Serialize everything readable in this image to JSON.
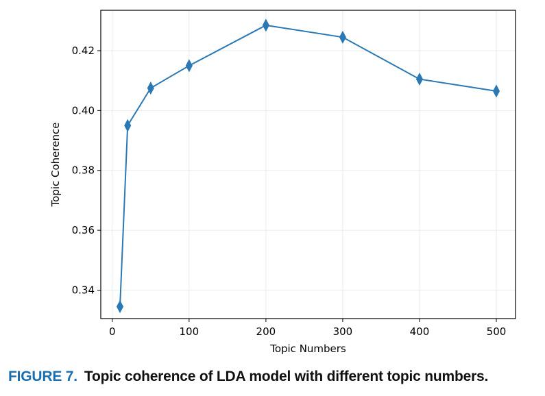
{
  "caption": {
    "label": "FIGURE 7.",
    "text": "Topic coherence of LDA model with different topic numbers."
  },
  "colors": {
    "line": "#2a78b4",
    "marker": "#2a78b4",
    "grid": "#e6e6e6",
    "frame": "#000000"
  },
  "chart_data": {
    "type": "line",
    "xlabel": "Topic Numbers",
    "ylabel": "Topic Coherence",
    "x": [
      10,
      20,
      50,
      100,
      200,
      300,
      400,
      500
    ],
    "series": [
      {
        "values": [
          0.3345,
          0.395,
          0.4075,
          0.415,
          0.4285,
          0.4245,
          0.4105,
          0.4065
        ],
        "marker": "thin_diamond"
      }
    ],
    "xlim": [
      -15,
      525
    ],
    "ylim": [
      0.3305,
      0.4335
    ],
    "xticks": [
      0,
      100,
      200,
      300,
      400,
      500
    ],
    "xtick_labels": [
      "0",
      "100",
      "200",
      "300",
      "400",
      "500"
    ],
    "yticks": [
      0.34,
      0.36,
      0.38,
      0.4,
      0.42
    ],
    "ytick_labels": [
      "0.34",
      "0.36",
      "0.38",
      "0.40",
      "0.42"
    ],
    "grid": true
  }
}
